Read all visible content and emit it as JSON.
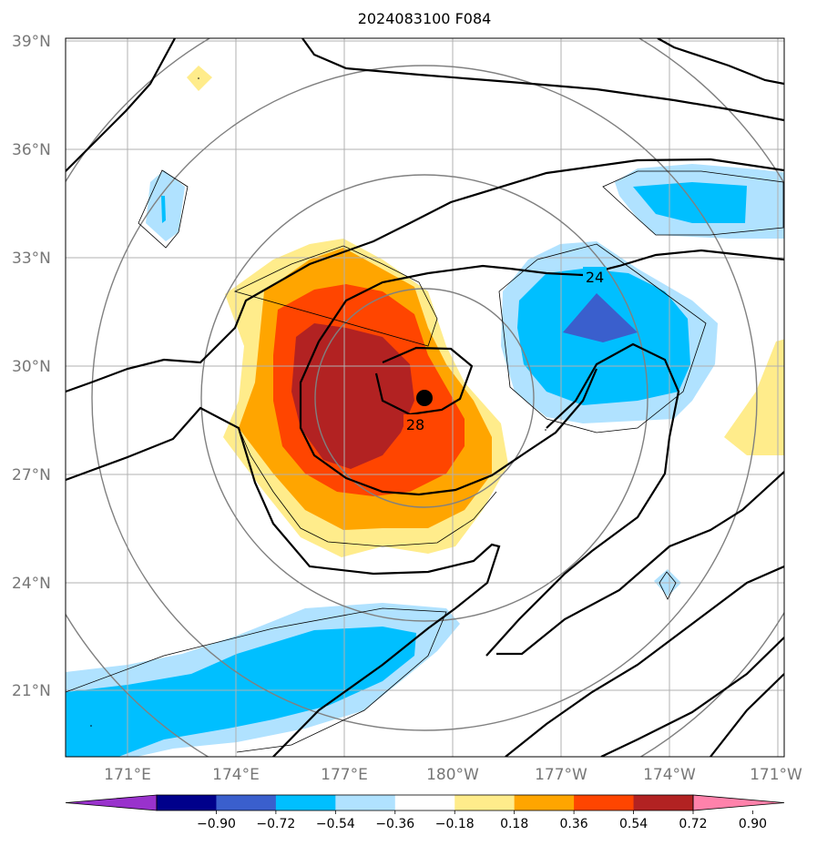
{
  "title": "2024083100 F084",
  "lat_labels": [
    "39°N",
    "36°N",
    "33°N",
    "30°N",
    "27°N",
    "24°N",
    "21°N"
  ],
  "lon_labels": [
    "171°E",
    "174°E",
    "177°E",
    "180°W",
    "177°W",
    "174°W",
    "171°W"
  ],
  "contour_labels": [
    "24",
    "28"
  ],
  "colorbar": {
    "colors": [
      "#9932cc",
      "#00008b",
      "#3a5fcd",
      "#00bfff",
      "#b0e2ff",
      "#ffffff",
      "#ffec8b",
      "#ffa500",
      "#ff4500",
      "#b22222",
      "#ff82ab"
    ],
    "tick_labels": [
      "−0.90",
      "−0.72",
      "−0.54",
      "−0.36",
      "−0.18",
      "0.18",
      "0.36",
      "0.54",
      "0.72",
      "0.90"
    ]
  }
}
